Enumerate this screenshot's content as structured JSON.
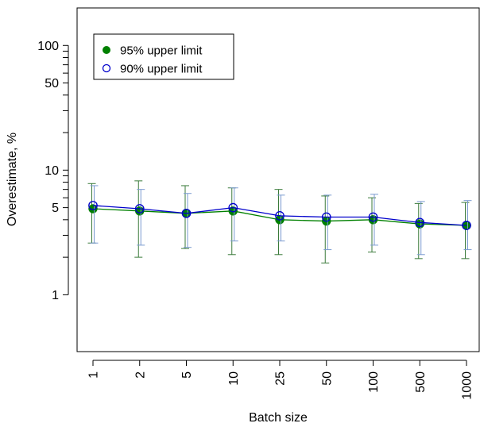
{
  "chart_data": {
    "type": "scatter",
    "xlabel": "Batch size",
    "ylabel": "Overestimate, %",
    "categories": [
      "1",
      "2",
      "5",
      "10",
      "25",
      "50",
      "100",
      "500",
      "1000"
    ],
    "y_scale": "log",
    "ylim": [
      0.35,
      200
    ],
    "y_ticks": [
      1,
      5,
      10,
      50,
      100
    ],
    "y_tick_labels": [
      "1",
      "5",
      "10",
      "50",
      "100"
    ],
    "y_minor_ticks": [
      2,
      3,
      4,
      6,
      7,
      8,
      9,
      20,
      30,
      40,
      60,
      70,
      80,
      90
    ],
    "grid": false,
    "legend_position": "top-left",
    "series": [
      {
        "name": "95% upper limit",
        "color": "#008000",
        "marker": "filled-circle",
        "values": [
          4.9,
          4.7,
          4.5,
          4.7,
          4.0,
          3.9,
          4.0,
          3.7,
          3.6
        ],
        "err_low": [
          2.6,
          2.0,
          2.35,
          2.1,
          2.1,
          1.8,
          2.2,
          1.95,
          1.95
        ],
        "err_high": [
          7.8,
          8.2,
          7.5,
          7.2,
          7.0,
          6.2,
          6.0,
          5.4,
          5.5
        ]
      },
      {
        "name": "90% upper limit",
        "color": "#0000cc",
        "marker": "open-circle",
        "values": [
          5.2,
          4.9,
          4.5,
          5.0,
          4.3,
          4.2,
          4.2,
          3.8,
          3.6
        ],
        "err_low": [
          2.6,
          2.5,
          2.4,
          2.7,
          2.7,
          2.3,
          2.5,
          2.1,
          2.3
        ],
        "err_high": [
          7.5,
          7.0,
          6.5,
          7.2,
          6.3,
          6.3,
          6.4,
          5.6,
          5.7
        ]
      }
    ]
  }
}
